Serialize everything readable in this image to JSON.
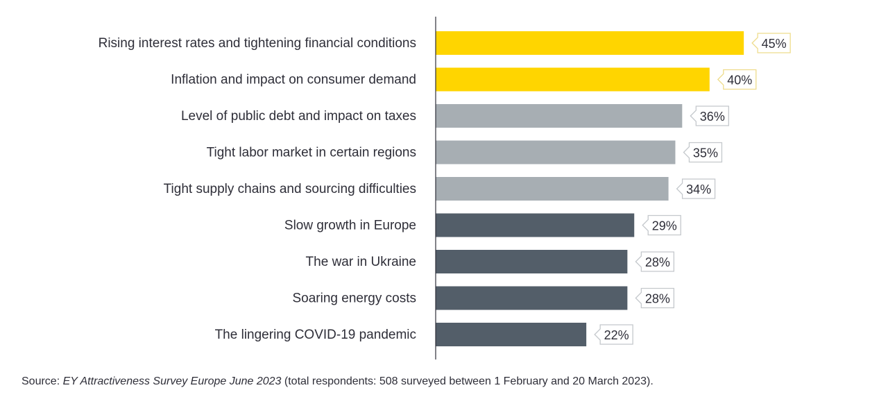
{
  "chart_data": {
    "type": "bar",
    "orientation": "horizontal",
    "title": "",
    "xlabel": "",
    "ylabel": "",
    "xlim": [
      0,
      50
    ],
    "grid": false,
    "categories": [
      "Rising interest rates and tightening financial conditions",
      "Inflation and impact on consumer demand",
      "Level of public debt and impact on taxes",
      "Tight labor market in certain regions",
      "Tight supply chains and sourcing difficulties",
      "Slow growth in Europe",
      "The war in Ukraine",
      "Soaring energy costs",
      "The lingering COVID-19 pandemic"
    ],
    "values": [
      45,
      40,
      36,
      35,
      34,
      29,
      28,
      28,
      22
    ],
    "data_labels": [
      "45%",
      "40%",
      "36%",
      "35%",
      "34%",
      "29%",
      "28%",
      "28%",
      "22%"
    ],
    "bar_colors": [
      "#FFD500",
      "#FFD500",
      "#A7AEB3",
      "#A7AEB3",
      "#A7AEB3",
      "#535E69",
      "#535E69",
      "#535E69",
      "#535E69"
    ],
    "label_border_colors": [
      "#EEDC8C",
      "#EEDC8C",
      "#C4C8CC",
      "#C4C8CC",
      "#C4C8CC",
      "#C4C8CC",
      "#C4C8CC",
      "#C4C8CC",
      "#C4C8CC"
    ]
  },
  "source": {
    "prefix": "Source: ",
    "title": "EY Attractiveness Survey Europe June 2023",
    "suffix": " (total respondents: 508 surveyed between 1 February and 20 March 2023)."
  }
}
